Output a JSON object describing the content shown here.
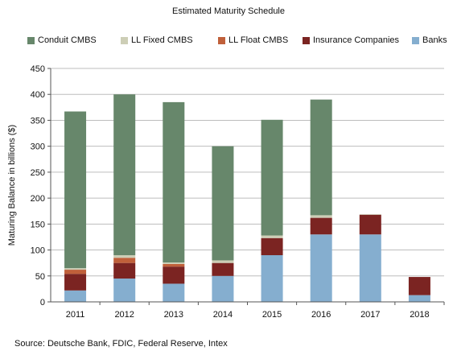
{
  "chart_data": {
    "type": "bar",
    "stacked": true,
    "title": "Estimated Maturity Schedule",
    "xlabel": "",
    "ylabel": "Maturing Balance in billions ($)",
    "ylim": [
      0,
      450
    ],
    "yticks": [
      0,
      50,
      100,
      150,
      200,
      250,
      300,
      350,
      400,
      450
    ],
    "categories": [
      "2011",
      "2012",
      "2013",
      "2014",
      "2015",
      "2016",
      "2017",
      "2018"
    ],
    "grid": true,
    "legend_position": "top",
    "series": [
      {
        "name": "Banks",
        "color": "#85aecf",
        "values": [
          22,
          45,
          35,
          50,
          90,
          130,
          130,
          13
        ]
      },
      {
        "name": "Insurance Companies",
        "color": "#7b2422",
        "values": [
          32,
          30,
          33,
          25,
          33,
          32,
          38,
          35
        ]
      },
      {
        "name": "LL Float CMBS",
        "color": "#c0603a",
        "values": [
          8,
          10,
          5,
          0,
          0,
          0,
          0,
          0
        ]
      },
      {
        "name": "LL Fixed CMBS",
        "color": "#cdceb6",
        "values": [
          3,
          5,
          3,
          5,
          5,
          5,
          1,
          0
        ]
      },
      {
        "name": "Conduit CMBS",
        "color": "#67876b",
        "values": [
          302,
          310,
          309,
          220,
          223,
          223,
          0,
          0
        ]
      }
    ],
    "legend_order": [
      "Conduit CMBS",
      "LL Fixed CMBS",
      "LL Float CMBS",
      "Insurance Companies",
      "Banks"
    ]
  },
  "legend": {
    "items": [
      {
        "label": "Conduit CMBS",
        "color": "#67876b"
      },
      {
        "label": "LL Fixed CMBS",
        "color": "#cdceb6"
      },
      {
        "label": "LL Float CMBS",
        "color": "#c0603a"
      },
      {
        "label": "Insurance Companies",
        "color": "#7b2422"
      },
      {
        "label": "Banks",
        "color": "#85aecf"
      }
    ]
  },
  "footer": {
    "source": "Source: Deutsche Bank, FDIC, Federal Reserve, Intex"
  }
}
